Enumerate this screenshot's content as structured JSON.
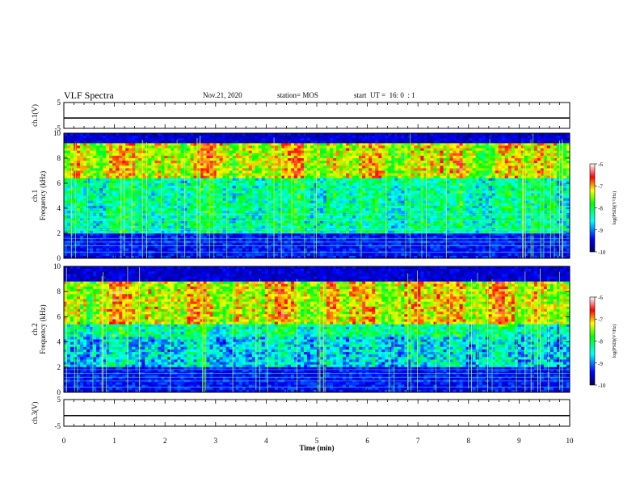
{
  "header": {
    "title": "VLF Spectra",
    "date": "Nov.21, 2020",
    "station": "station= MOS",
    "start_ut": "start  UT =  16: 0  : 1"
  },
  "chart_data": [
    {
      "type": "line",
      "panel": "ch1-waveform",
      "ylabel": "ch.1(V)",
      "ylim": [
        -5,
        5
      ],
      "yticks": [
        "5",
        "-5"
      ],
      "xlim": [
        0,
        10
      ],
      "series": [
        {
          "x": [
            0,
            10
          ],
          "values": [
            -1,
            -1
          ]
        }
      ]
    },
    {
      "type": "heatmap",
      "panel": "ch1-spectrogram",
      "ylabel": "ch.1\nFrequency (kHz)",
      "ylim": [
        0,
        10
      ],
      "yticks": [
        "0",
        "2",
        "4",
        "6",
        "8",
        "10"
      ],
      "xlim": [
        0,
        10
      ],
      "colorbar": {
        "label": "log(PSD)(V²/Hz)",
        "range": [
          -10,
          -6
        ],
        "ticks": [
          "-6",
          "-7",
          "-8",
          "-9",
          "-10"
        ],
        "colors": [
          "#000080",
          "#0000ff",
          "#00ffff",
          "#00ff00",
          "#ffff00",
          "#ff0000",
          "#ffffff"
        ]
      },
      "features": {
        "intense_band_khz": [
          6.5,
          9.2
        ],
        "background_khz": [
          9.2,
          10
        ],
        "quiet_band_khz": [
          0.3,
          1.9
        ]
      }
    },
    {
      "type": "heatmap",
      "panel": "ch2-spectrogram",
      "ylabel": "ch.2\nFrequency (kHz)",
      "ylim": [
        0,
        10
      ],
      "yticks": [
        "0",
        "2",
        "4",
        "6",
        "8",
        "10"
      ],
      "xlim": [
        0,
        10
      ],
      "colorbar": {
        "label": "log(PSD)(V²/Hz)",
        "range": [
          -10,
          -6
        ],
        "ticks": [
          "-6",
          "-7",
          "-8",
          "-9",
          "-10"
        ],
        "colors": [
          "#000080",
          "#0000ff",
          "#00ffff",
          "#00ff00",
          "#ffff00",
          "#ff0000",
          "#ffffff"
        ]
      },
      "features": {
        "intense_band_khz": [
          5.5,
          8.8
        ],
        "background_khz": [
          8.8,
          10
        ],
        "quiet_band_khz": [
          0.3,
          2.0
        ]
      }
    },
    {
      "type": "line",
      "panel": "ch3-waveform",
      "ylabel": "ch.3(V)",
      "ylim": [
        -5,
        5
      ],
      "yticks": [
        "5",
        "-5"
      ],
      "xlim": [
        0,
        10
      ],
      "xlabel": "Time  (min)",
      "xticks": [
        "0",
        "1",
        "2",
        "3",
        "4",
        "5",
        "6",
        "7",
        "8",
        "9",
        "10"
      ],
      "series": [
        {
          "x": [
            0,
            10
          ],
          "values": [
            -1,
            -1
          ]
        }
      ]
    }
  ]
}
